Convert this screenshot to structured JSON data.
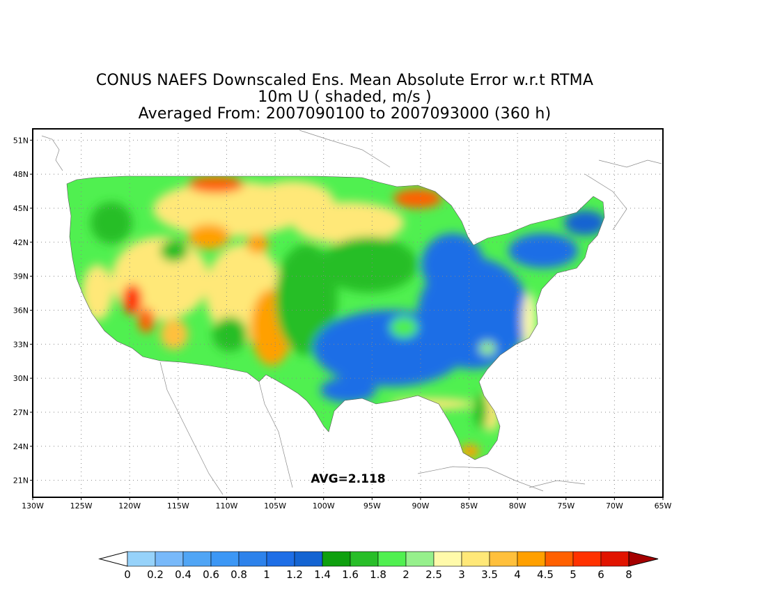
{
  "title": {
    "line1": "CONUS NAEFS Downscaled Ens. Mean Absolute Error w.r.t RTMA",
    "line2": "10m U ( shaded, m/s )",
    "line3": "Averaged From: 2007090100 to 2007093000 (360 h)"
  },
  "map": {
    "lon_range": [
      -130,
      -65
    ],
    "lat_range": [
      19.5,
      52
    ],
    "lon_ticks": [
      "130W",
      "125W",
      "120W",
      "115W",
      "110W",
      "105W",
      "100W",
      "95W",
      "90W",
      "85W",
      "80W",
      "75W",
      "70W",
      "65W"
    ],
    "lon_tick_values": [
      -130,
      -125,
      -120,
      -115,
      -110,
      -105,
      -100,
      -95,
      -90,
      -85,
      -80,
      -75,
      -70,
      -65
    ],
    "lat_ticks": [
      "21N",
      "24N",
      "27N",
      "30N",
      "33N",
      "36N",
      "39N",
      "42N",
      "45N",
      "48N",
      "51N"
    ],
    "lat_tick_values": [
      21,
      24,
      27,
      30,
      33,
      36,
      39,
      42,
      45,
      48,
      51
    ],
    "grid": "dotted",
    "avg_label": "AVG=2.118"
  },
  "colorbar": {
    "labels": [
      "0",
      "0.2",
      "0.4",
      "0.6",
      "0.8",
      "1",
      "1.2",
      "1.4",
      "1.6",
      "1.8",
      "2",
      "2.5",
      "3",
      "3.5",
      "4",
      "4.5",
      "5",
      "6",
      "8"
    ],
    "colors": [
      "#96d2fa",
      "#78b9fa",
      "#50a5f5",
      "#3c97f5",
      "#2d82eb",
      "#1e6ee6",
      "#1464d2",
      "#0fa00f",
      "#28be28",
      "#50f050",
      "#96f08c",
      "#fffaaa",
      "#ffe878",
      "#ffc03c",
      "#ffa000",
      "#ff6000",
      "#ff3200",
      "#e11400",
      "#c00000"
    ],
    "under_color": "#ffffff",
    "over_color": "#a50000"
  }
}
